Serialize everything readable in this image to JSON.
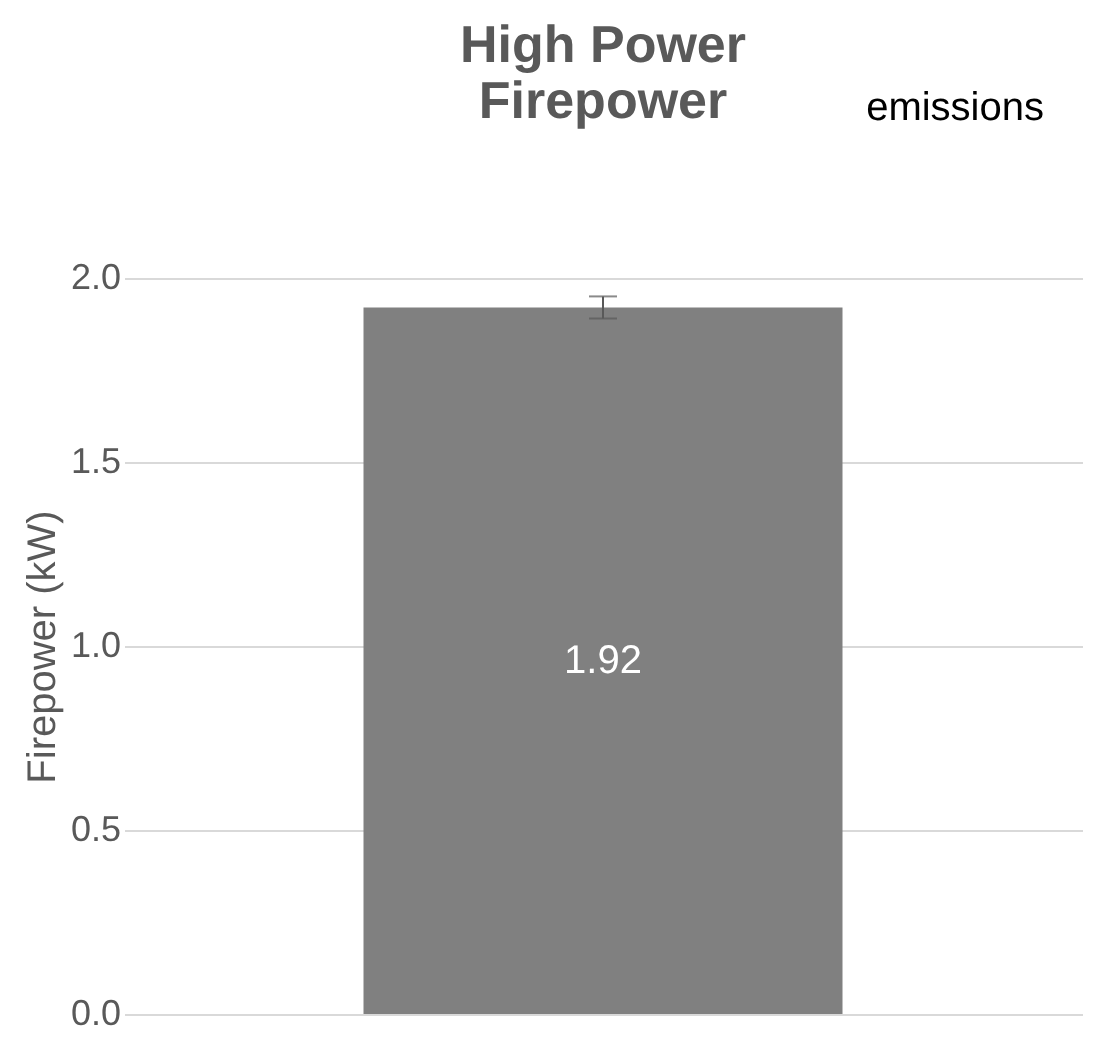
{
  "chart_data": {
    "type": "bar",
    "title": "High Power\nFirepower",
    "ylabel": "Firepower (kW)",
    "annotations": [
      "emissions"
    ],
    "categories": [
      null
    ],
    "values": [
      1.92
    ],
    "errors": [
      0.03
    ],
    "color": "#808080",
    "data_labels": true,
    "ylim": [
      0,
      2.0
    ],
    "yticks": [
      {
        "value": 0,
        "label": "0.0"
      },
      {
        "value": 0.5,
        "label": "0.5"
      },
      {
        "value": 1,
        "label": "1.0"
      },
      {
        "value": 1.5,
        "label": "1.5"
      },
      {
        "value": 2,
        "label": "2.0"
      }
    ],
    "grid": "y"
  }
}
